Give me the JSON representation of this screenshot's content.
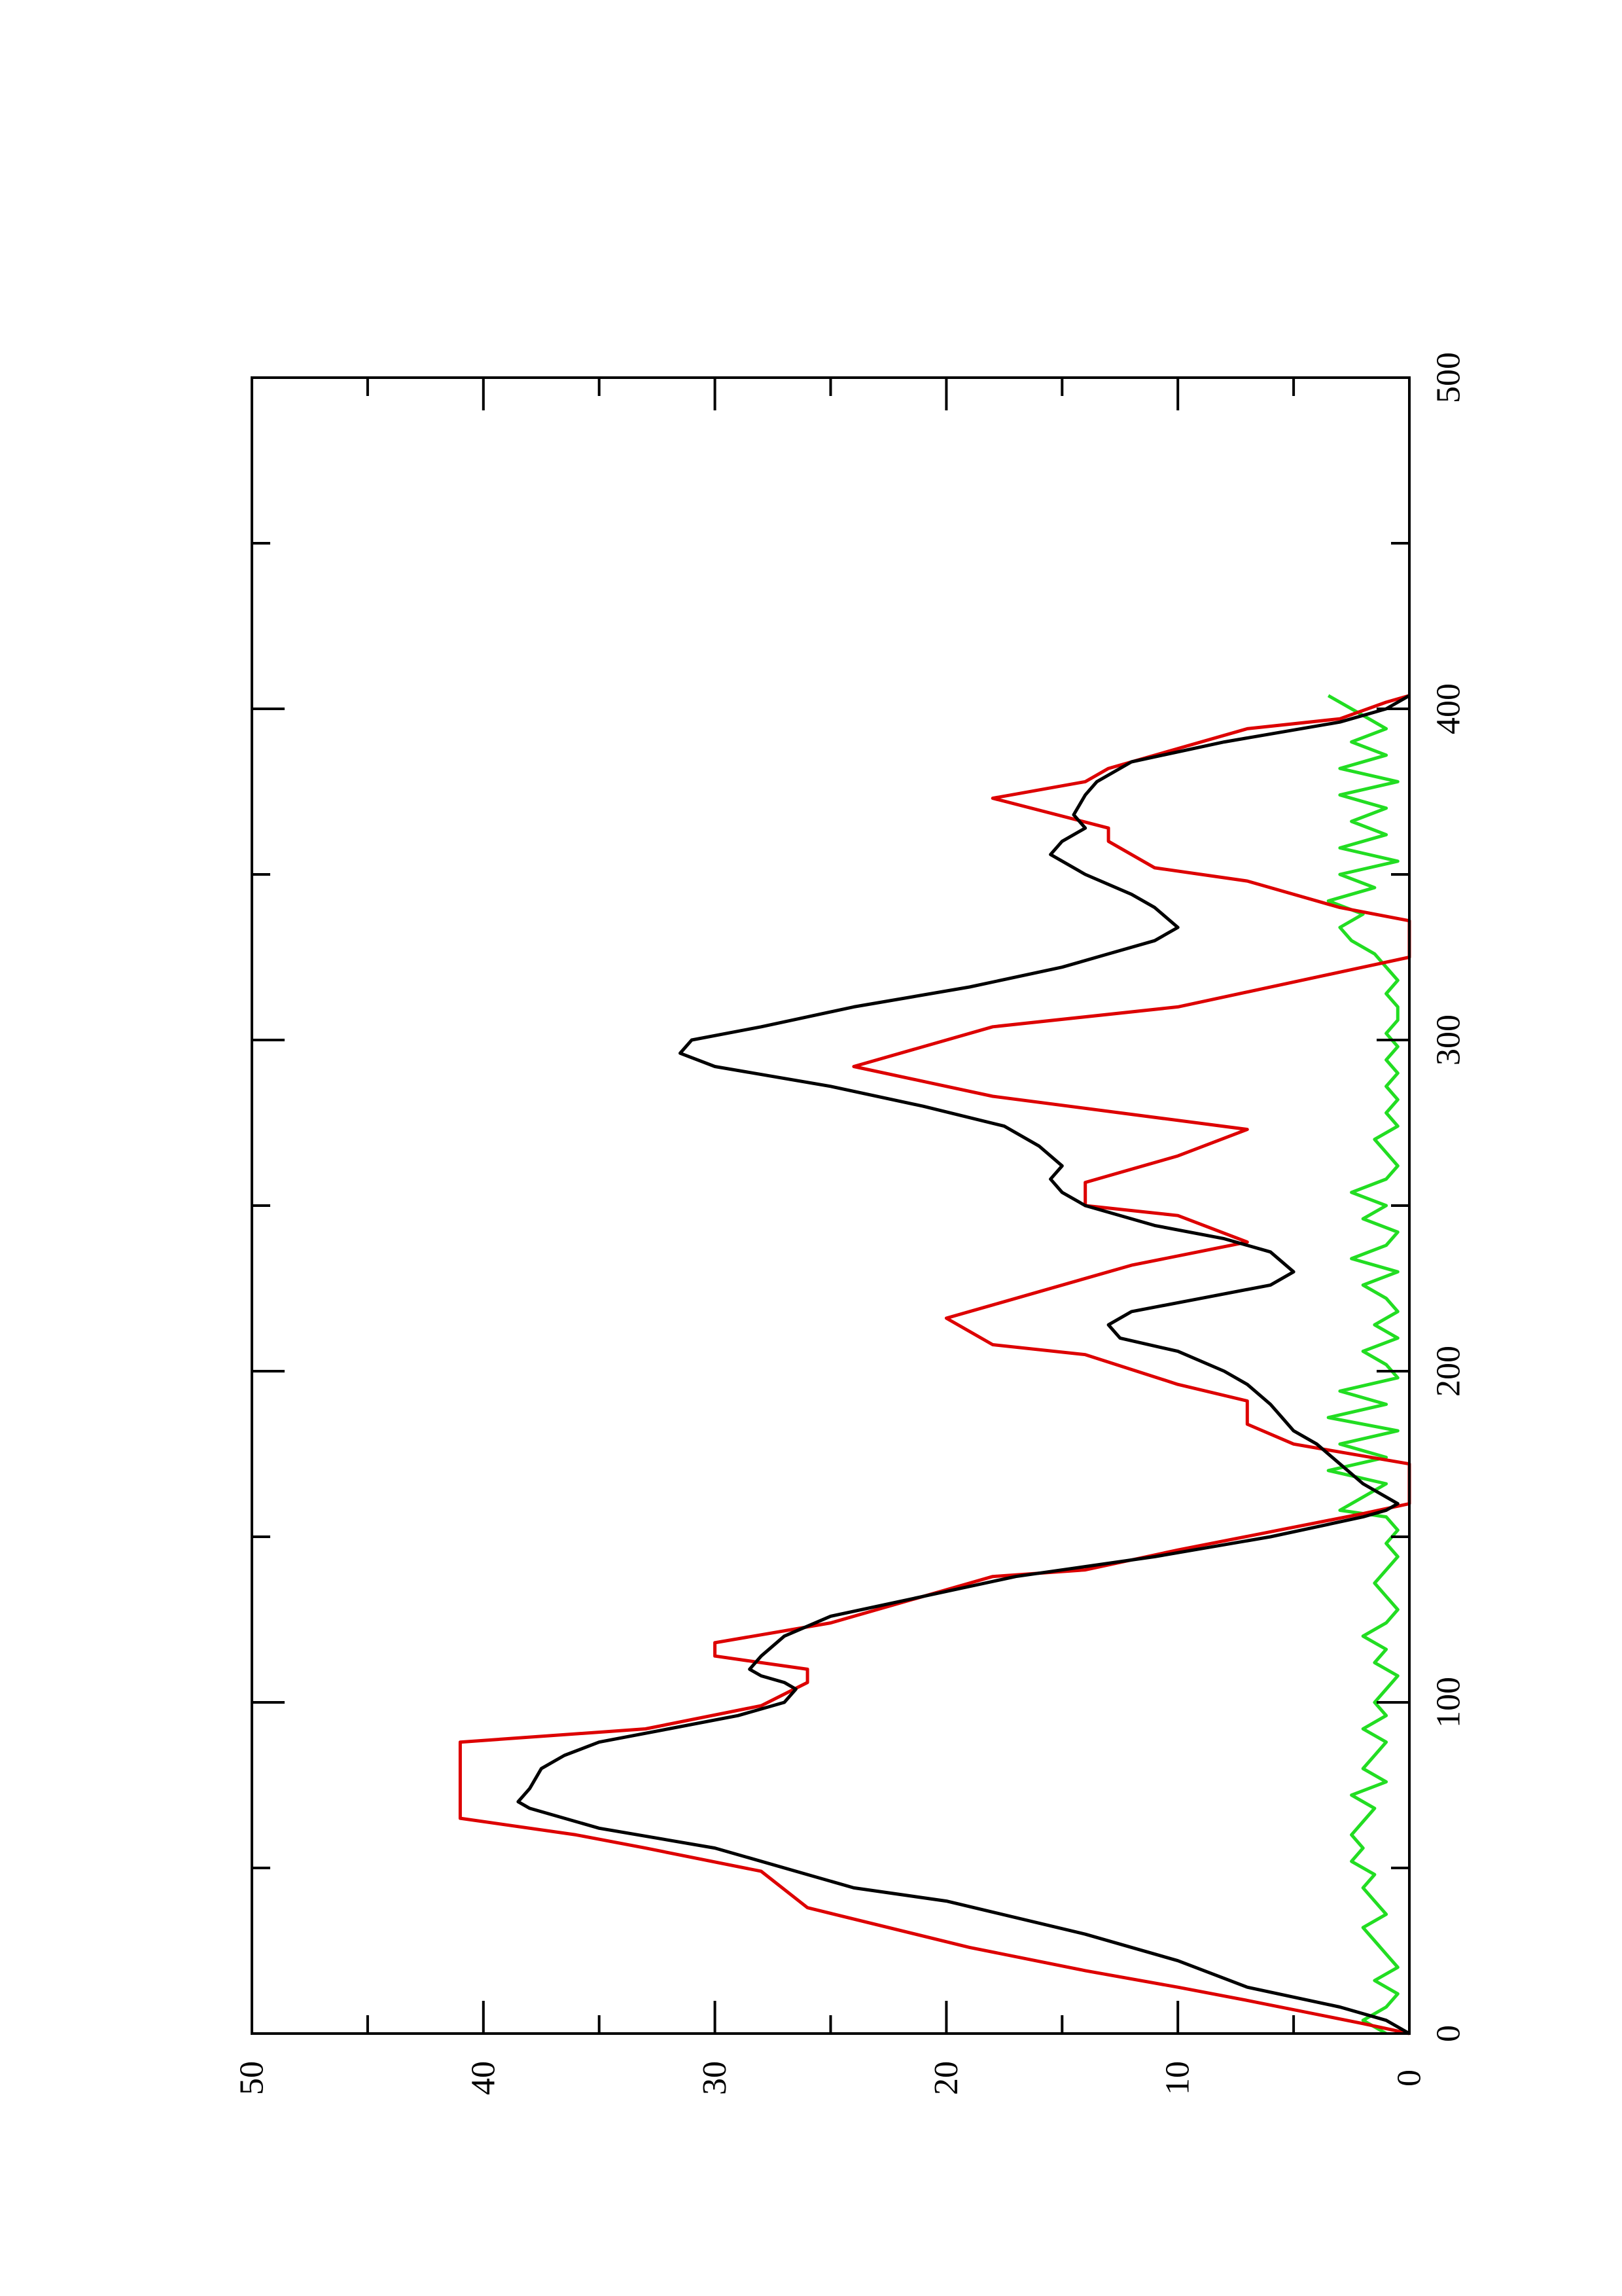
{
  "chart_data": {
    "type": "line",
    "orientation": "rotated-90-ccw",
    "title": "",
    "xlabel": "",
    "ylabel": "",
    "xlim": [
      0,
      500
    ],
    "ylim": [
      0,
      50
    ],
    "x_ticks": [
      0,
      100,
      200,
      300,
      400,
      500
    ],
    "x_tick_labels": [
      "0",
      "100",
      "200",
      "300",
      "400",
      "500"
    ],
    "y_ticks": [
      0,
      10,
      20,
      30,
      40,
      50
    ],
    "y_tick_labels": [
      "0",
      "10",
      "20",
      "30",
      "40",
      "50"
    ],
    "grid": false,
    "series": [
      {
        "color": "#dd0000",
        "style": "step",
        "x": [
          0,
          3,
          10,
          14,
          19,
          26,
          38,
          49,
          56,
          60,
          65,
          88,
          92,
          99,
          106,
          110,
          114,
          118,
          124,
          138,
          140,
          146,
          157,
          160,
          162,
          172,
          178,
          184,
          191,
          196,
          205,
          208,
          216,
          220,
          228,
          232,
          239,
          247,
          250,
          257,
          265,
          273,
          283,
          292,
          304,
          310,
          322,
          325,
          330,
          336,
          340,
          348,
          352,
          360,
          364,
          373,
          378,
          382,
          394,
          397,
          402,
          404
        ],
        "y": [
          0,
          2,
          7,
          10,
          14,
          19,
          26,
          28,
          33,
          36,
          41,
          41,
          33,
          28,
          26,
          26,
          30,
          30,
          25,
          18,
          14,
          10,
          2,
          0,
          0,
          0,
          5,
          7,
          7,
          10,
          14,
          18,
          20,
          18,
          14,
          12,
          7,
          10,
          14,
          14,
          10,
          7,
          18,
          24,
          18,
          10,
          2,
          0,
          0,
          0,
          3,
          7,
          11,
          13,
          13,
          18,
          14,
          13,
          7,
          3,
          1,
          0
        ]
      },
      {
        "color": "#000000",
        "style": "line",
        "x": [
          0,
          4,
          8,
          14,
          22,
          30,
          40,
          44,
          48,
          56,
          62,
          66,
          68,
          70,
          74,
          80,
          84,
          88,
          92,
          96,
          100,
          104,
          106,
          108,
          110,
          114,
          120,
          126,
          132,
          138,
          144,
          150,
          156,
          158,
          160,
          166,
          172,
          178,
          182,
          186,
          190,
          196,
          200,
          206,
          210,
          214,
          218,
          222,
          226,
          230,
          236,
          240,
          244,
          250,
          254,
          258,
          262,
          268,
          274,
          280,
          286,
          292,
          296,
          300,
          304,
          310,
          316,
          322,
          326,
          330,
          334,
          340,
          344,
          350,
          356,
          360,
          364,
          368,
          374,
          378,
          384,
          390,
          396,
          400,
          404
        ],
        "y": [
          0,
          1,
          3,
          7,
          10,
          14,
          20,
          24,
          26,
          30,
          35,
          37,
          38,
          38.5,
          38,
          37.5,
          36.5,
          35,
          32,
          29,
          27,
          26.5,
          27,
          28,
          28.5,
          28,
          27,
          25,
          21,
          17,
          11,
          6,
          2,
          1,
          0.5,
          2,
          3,
          4,
          5,
          5.5,
          6,
          7,
          8,
          10,
          12.5,
          13,
          12,
          9,
          6,
          5,
          6,
          8,
          11,
          14,
          15,
          15.5,
          15,
          16,
          17.5,
          21,
          25,
          30,
          31.5,
          31,
          28,
          24,
          19,
          15,
          13,
          11,
          10,
          11,
          12,
          14,
          15.5,
          15,
          14,
          14.5,
          14,
          13.5,
          12,
          8,
          3,
          1,
          0
        ]
      },
      {
        "color": "#22dd22",
        "style": "line",
        "x": [
          0,
          4,
          8,
          12,
          16,
          20,
          24,
          28,
          32,
          36,
          40,
          44,
          48,
          52,
          56,
          60,
          64,
          68,
          72,
          76,
          80,
          84,
          88,
          92,
          96,
          100,
          104,
          108,
          112,
          116,
          120,
          124,
          128,
          132,
          136,
          140,
          144,
          148,
          152,
          156,
          158,
          162,
          166,
          170,
          174,
          178,
          182,
          186,
          190,
          194,
          198,
          202,
          206,
          210,
          214,
          218,
          222,
          226,
          230,
          234,
          238,
          242,
          246,
          250,
          254,
          258,
          262,
          266,
          270,
          274,
          278,
          282,
          286,
          290,
          294,
          298,
          302,
          306,
          310,
          314,
          318,
          322,
          326,
          330,
          334,
          338,
          342,
          346,
          350,
          354,
          358,
          362,
          366,
          370,
          374,
          378,
          382,
          386,
          390,
          394,
          398,
          402,
          404
        ],
        "y": [
          1,
          2,
          1,
          0.5,
          1.5,
          0.5,
          1,
          1.5,
          2,
          1,
          1.5,
          2,
          1.5,
          2.5,
          2,
          2.5,
          2,
          1.5,
          2.5,
          1,
          2,
          1.5,
          1,
          2,
          1,
          1.5,
          1,
          0.5,
          1.5,
          1,
          2,
          1,
          0.5,
          1,
          1.5,
          1,
          0.5,
          1,
          0.5,
          1,
          3,
          2,
          1,
          3.5,
          1,
          3,
          0.5,
          3.5,
          1,
          3,
          0.5,
          1,
          2,
          0.5,
          1.5,
          0.5,
          1,
          2,
          0.5,
          2.5,
          1,
          0.5,
          2,
          1,
          2.5,
          1,
          0.5,
          1,
          1.5,
          0.5,
          1,
          0.5,
          1,
          0.5,
          1,
          0.5,
          1,
          0.5,
          0.5,
          1,
          0.5,
          1,
          1.5,
          2.5,
          3,
          2,
          3.5,
          1.5,
          3,
          0.5,
          3,
          1,
          2.5,
          1,
          3,
          0.5,
          3,
          1,
          2.5,
          1,
          2,
          3,
          3.5
        ]
      }
    ]
  }
}
